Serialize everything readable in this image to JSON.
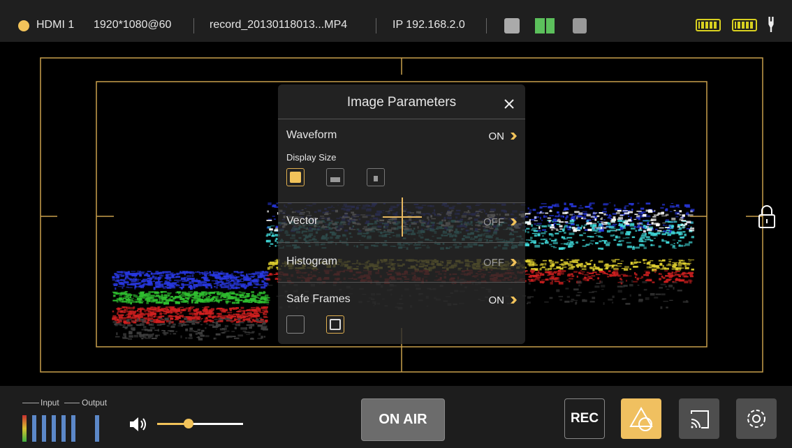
{
  "status_bar": {
    "source": "HDMI 1",
    "resolution": "1920*1080@60",
    "file": "record_20130118013...MP4",
    "ip": "IP 192.168.2.0"
  },
  "panel": {
    "title": "Image Parameters",
    "display_size": "Display Size",
    "items": [
      {
        "label": "Waveform",
        "state": "ON"
      },
      {
        "label": "Vector",
        "state": "OFF"
      },
      {
        "label": "Histogram",
        "state": "OFF"
      },
      {
        "label": "Safe Frames",
        "state": "ON"
      }
    ]
  },
  "bottom_bar": {
    "input_label": "Input",
    "output_label": "Output",
    "on_air": "ON AIR",
    "rec": "REC"
  }
}
